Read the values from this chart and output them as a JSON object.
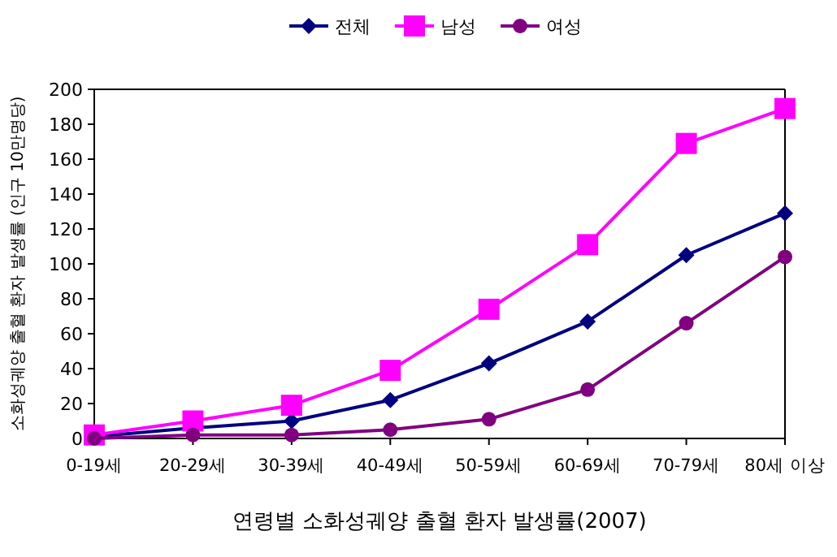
{
  "chart_data": {
    "type": "line",
    "title": "연령별 소화성궤양 출혈 환자 발생률(2007)",
    "ylabel": "소화성궤양 출혈 환자 발생률 (인구 10만명당)",
    "categories": [
      "0-19세",
      "20-29세",
      "30-39세",
      "40-49세",
      "50-59세",
      "60-69세",
      "70-79세",
      "80세 이상"
    ],
    "series": [
      {
        "name": "전체",
        "color": "#000080",
        "marker": "diamond",
        "values": [
          1,
          6,
          10,
          22,
          43,
          67,
          105,
          129
        ]
      },
      {
        "name": "남성",
        "color": "#ff00ff",
        "marker": "square",
        "values": [
          2,
          10,
          19,
          39,
          74,
          111,
          169,
          189
        ]
      },
      {
        "name": "여성",
        "color": "#800080",
        "marker": "circle",
        "values": [
          0,
          2,
          2,
          5,
          11,
          28,
          66,
          104
        ]
      }
    ],
    "ylim": [
      0,
      200
    ],
    "yticks": [
      0,
      20,
      40,
      60,
      80,
      100,
      120,
      140,
      160,
      180,
      200
    ],
    "grid": false,
    "legend": "top"
  }
}
